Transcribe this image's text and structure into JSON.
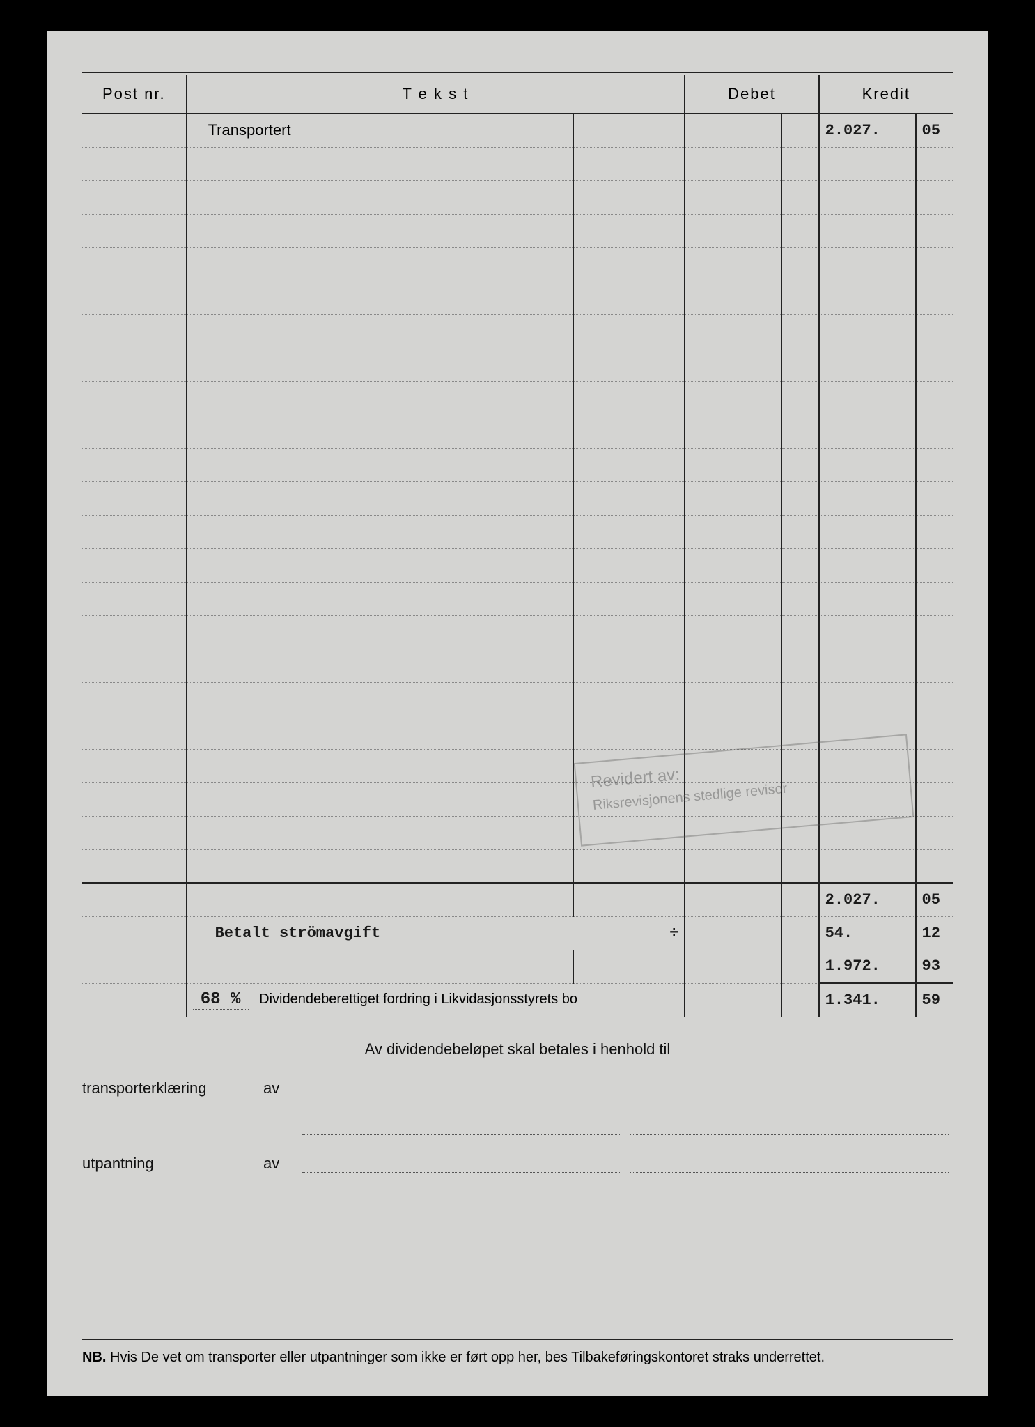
{
  "headers": {
    "post": "Post nr.",
    "tekst": "T e k s t",
    "debet": "Debet",
    "kredit": "Kredit"
  },
  "rows": {
    "transportert": {
      "label": "Transportert",
      "kredit_main": "2.027.",
      "kredit_cents": "05"
    },
    "subtotal": {
      "kredit_main": "2.027.",
      "kredit_cents": "05"
    },
    "stromavgift": {
      "label": "Betalt strömavgift",
      "symbol": "÷",
      "kredit_main": "54.",
      "kredit_cents": "12"
    },
    "net": {
      "kredit_main": "1.972.",
      "kredit_cents": "93"
    },
    "dividend": {
      "pct": "68 %",
      "label": "Dividendeberettiget fordring i Likvidasjonsstyrets bo",
      "kredit_main": "1.341.",
      "kredit_cents": "59"
    }
  },
  "blank_row_count": 22,
  "stamp": {
    "line1": "Revidert av:",
    "line2": "Riksrevisjonens stedlige revisor"
  },
  "footer": {
    "center": "Av dividendebeløpet skal betales i henhold til",
    "transport_label": "transporterklæring",
    "utpantning_label": "utpantning",
    "av": "av"
  },
  "nb": "NB.  Hvis De vet om transporter eller utpantninger som ikke er ført opp her, bes Tilbakeføringskontoret straks underrettet."
}
